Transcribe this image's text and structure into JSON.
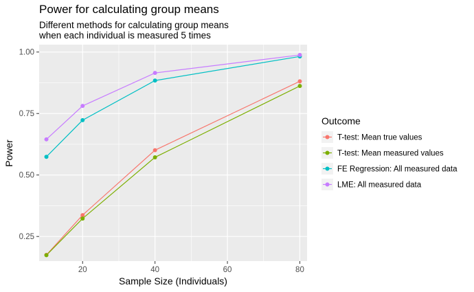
{
  "chart_data": {
    "type": "line",
    "title": "Power for calculating group means",
    "subtitle_lines": [
      "Different methods for calculating group means",
      "when each individual is measured 5 times"
    ],
    "xlabel": "Sample Size (Individuals)",
    "ylabel": "Power",
    "x": [
      10,
      20,
      40,
      80
    ],
    "xlim": [
      8,
      82
    ],
    "ylim": [
      0.15,
      1.03
    ],
    "x_ticks": [
      20,
      40,
      60,
      80
    ],
    "y_ticks": [
      0.25,
      0.5,
      0.75,
      1.0
    ],
    "x_tick_labels": [
      "20",
      "40",
      "60",
      "80"
    ],
    "y_tick_labels": [
      "0.25",
      "0.50",
      "0.75",
      "1.00"
    ],
    "grid": true,
    "legend_title": "Outcome",
    "legend_position": "right",
    "series": [
      {
        "name": "T-test: Mean true values",
        "color": "#F8766D",
        "values": [
          0.175,
          0.337,
          0.601,
          0.881
        ]
      },
      {
        "name": "T-test: Mean measured values",
        "color": "#7CAE00",
        "values": [
          0.174,
          0.323,
          0.572,
          0.862
        ]
      },
      {
        "name": "FE Regression: All measured data",
        "color": "#00BFC4",
        "values": [
          0.574,
          0.723,
          0.884,
          0.982
        ]
      },
      {
        "name": "LME: All measured data",
        "color": "#C77CFF",
        "values": [
          0.645,
          0.781,
          0.915,
          0.988
        ]
      }
    ]
  }
}
